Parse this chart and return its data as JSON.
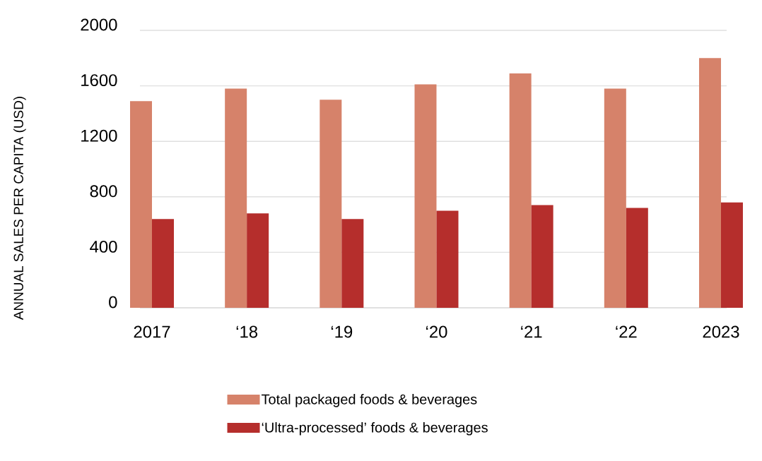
{
  "chart_data": {
    "type": "bar",
    "ylabel": "ANNUAL SALES PER CAPITA (USD)",
    "categories": [
      "2017",
      "‘18",
      "‘19",
      "‘20",
      "‘21",
      "‘22",
      "2023"
    ],
    "series": [
      {
        "name": "Total packaged foods & beverages",
        "color": "#d6826a",
        "values": [
          1490,
          1580,
          1500,
          1610,
          1690,
          1580,
          1800
        ]
      },
      {
        "name": "‘Ultra-processed’ foods & beverages",
        "color": "#b52e2c",
        "values": [
          640,
          680,
          640,
          700,
          740,
          720,
          760
        ]
      }
    ],
    "ylim": [
      0,
      2000
    ],
    "yticks": [
      0,
      400,
      800,
      1200,
      1600,
      2000
    ],
    "grid": "y",
    "legend": "bottom"
  }
}
